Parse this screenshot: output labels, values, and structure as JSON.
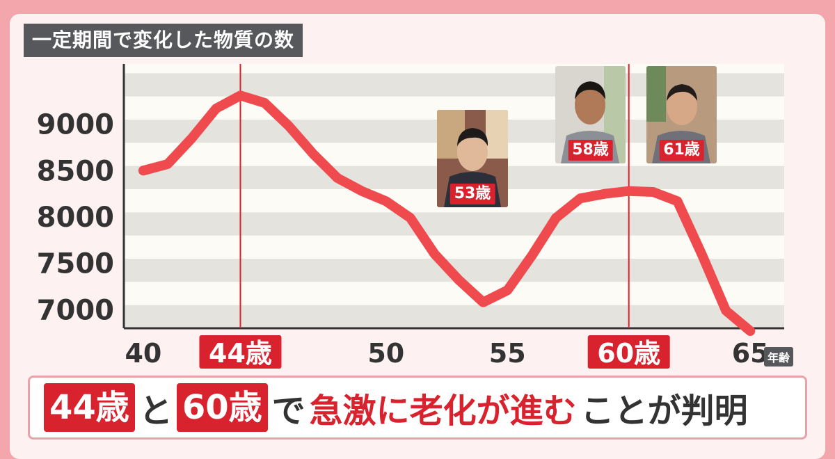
{
  "title": "一定期間で変化した物質の数",
  "chart_data": {
    "type": "line",
    "title": "一定期間で変化した物質の数",
    "xlabel": "年齢",
    "x": [
      40,
      41,
      42,
      43,
      44,
      45,
      46,
      47,
      48,
      49,
      50,
      51,
      52,
      53,
      54,
      55,
      56,
      57,
      58,
      59,
      60,
      61,
      62,
      63,
      64,
      65
    ],
    "values": [
      8500,
      8570,
      8850,
      9170,
      9310,
      9230,
      8980,
      8680,
      8420,
      8280,
      8170,
      7990,
      7600,
      7320,
      7080,
      7210,
      7580,
      7990,
      8200,
      8250,
      8280,
      8270,
      8170,
      7600,
      6990,
      6770
    ],
    "xlim": [
      39.2,
      66.4
    ],
    "ylim": [
      6800,
      9650
    ],
    "yticks": [
      7000,
      7500,
      8000,
      8500,
      9000
    ],
    "xticks": [
      {
        "value": 40,
        "label": "40",
        "highlight": false
      },
      {
        "value": 44,
        "label": "44歳",
        "highlight": true
      },
      {
        "value": 50,
        "label": "50",
        "highlight": false
      },
      {
        "value": 55,
        "label": "55",
        "highlight": false
      },
      {
        "value": 60,
        "label": "60歳",
        "highlight": true
      },
      {
        "value": 65,
        "label": "65",
        "highlight": false
      }
    ],
    "markers": [
      44,
      60
    ],
    "grid": "horizontal bands",
    "colors": {
      "line": "#ef4b4f",
      "marker": "#d8222e",
      "band": "#e4e3de",
      "background": "#fcfbf5"
    }
  },
  "portraits": [
    {
      "age_label": "53歳",
      "icon": "man-portrait"
    },
    {
      "age_label": "58歳",
      "icon": "man-portrait"
    },
    {
      "age_label": "61歳",
      "icon": "man-portrait"
    }
  ],
  "x_unit_tag": "年齢",
  "caption": {
    "age1": "44歳",
    "conj": "と",
    "age2": "60歳",
    "de": "で",
    "emph": "急激に老化が進む",
    "tail": "ことが判明"
  }
}
